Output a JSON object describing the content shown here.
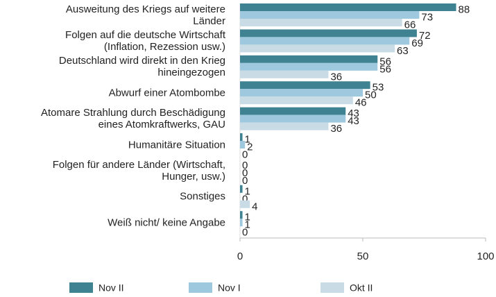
{
  "chart_data": {
    "type": "barh",
    "categories": [
      "Ausweitung des Kriegs auf weitere\nLänder",
      "Folgen auf die deutsche Wirtschaft\n(Inflation, Rezession usw.)",
      "Deutschland wird direkt in den Krieg\nhineingezogen",
      "Abwurf einer Atombombe",
      "Atomare Strahlung durch Beschädigung\neines Atomkraftwerks, GAU",
      "Humanitäre Situation",
      "Folgen für andere Länder (Wirtschaft,\nHunger, usw.)",
      "Sonstiges",
      "Weiß nicht/ keine Angabe"
    ],
    "series": [
      {
        "name": "Nov II",
        "color": "#3f8291",
        "values": [
          88,
          72,
          56,
          53,
          43,
          1,
          0,
          1,
          1
        ]
      },
      {
        "name": "Nov I",
        "color": "#9dc8dd",
        "values": [
          73,
          69,
          56,
          50,
          43,
          2,
          0,
          0,
          1
        ]
      },
      {
        "name": "Okt II",
        "color": "#c9dce5",
        "values": [
          66,
          63,
          36,
          46,
          36,
          0,
          0,
          4,
          0
        ]
      }
    ],
    "xlim": [
      0,
      100
    ],
    "xticks": [
      0,
      50,
      100
    ],
    "grid": false
  }
}
